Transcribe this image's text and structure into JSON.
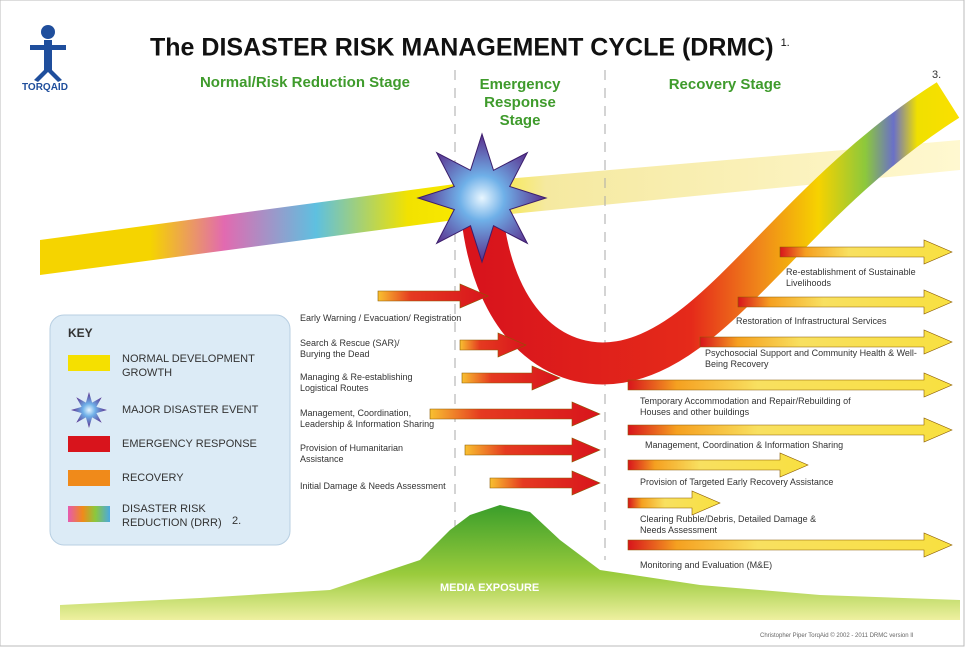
{
  "header": {
    "logo": "TORQAID",
    "title": "The DISASTER RISK MANAGEMENT CYCLE (DRMC)",
    "title_note": "1."
  },
  "stages": [
    "Normal/Risk Reduction Stage",
    "Emergency Response Stage",
    "Recovery Stage"
  ],
  "stage_note": "3.",
  "emergency_activities": [
    "Early Warning / Evacuation/ Registration",
    "Search & Rescue (SAR)/ Burying the Dead",
    "Managing & Re-establishing Logistical Routes",
    "Management, Coordination, Leadership & Information Sharing",
    "Provision of Humanitarian Assistance",
    "Initial Damage & Needs Assessment"
  ],
  "recovery_activities": [
    "Re-establishment of Sustainable Livelihoods",
    "Restoration of Infrastructural Services",
    "Psychosocial Support and Community Health & Well-Being Recovery",
    "Temporary Accommodation and Repair/Rebuilding of Houses and other buildings",
    "Management, Coordination & Information Sharing",
    "Provision of Targeted Early Recovery Assistance",
    "Clearing Rubble/Debris, Detailed Damage & Needs Assessment",
    "Monitoring and Evaluation (M&E)"
  ],
  "key": {
    "title": "KEY",
    "items": [
      "NORMAL DEVELOPMENT GROWTH",
      "MAJOR DISASTER EVENT",
      "EMERGENCY RESPONSE",
      "RECOVERY",
      "DISASTER RISK REDUCTION (DRR)"
    ],
    "note": "2."
  },
  "media_label": "MEDIA EXPOSURE",
  "footer": "Christopher Piper TorqAid © 2002 - 2011 DRMC version II"
}
